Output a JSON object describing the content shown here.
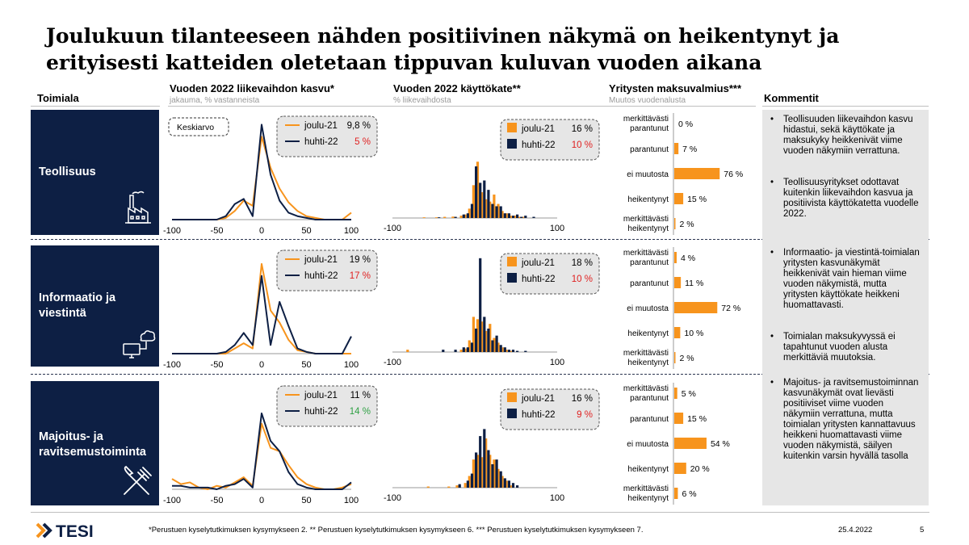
{
  "title_line1": "Joulukuun tilanteeseen nähden positiivinen näkymä on heikentynyt ja",
  "title_line2": "erityisesti katteiden oletetaan tippuvan kuluvan vuoden aikana",
  "headers": {
    "sector": "Toimiala",
    "revenue": "Vuoden 2022 liikevaihdon kasvu*",
    "revenue_sub": "jakauma, % vastanneista",
    "ebit": "Vuoden 2022 käyttökate**",
    "ebit_sub": "% liikevaihdosta",
    "liquidity": "Yritysten maksuvalmius***",
    "liquidity_sub": "Muutos vuodenalusta",
    "comments": "Kommentit"
  },
  "rows": [
    {
      "sector_line1": "Teollisuus",
      "sector_line2": "",
      "icon": "factory-icon"
    },
    {
      "sector_line1": "Informaatio ja",
      "sector_line2": "viestintä",
      "icon": "computer-cloud-icon"
    },
    {
      "sector_line1": "Majoitus- ja",
      "sector_line2": "ravitsemustoiminta",
      "icon": "fork-knife-icon"
    }
  ],
  "keskiarvo_label": "Keskiarvo",
  "comments": [
    "Teollisuuden liikevaihdon kasvu hidastui, sekä käyttökate ja maksukyky heikkenivät viime vuoden näkymiin verrattuna.",
    "Teollisuusyritykset odottavat kuitenkin liikevaihdon kasvua ja positiivista käyttökatetta vuodelle 2022.",
    "Informaatio- ja viestintä-toimialan yritysten kasvunäkymät heikkenivät vain hieman viime vuoden näkymistä, mutta yritysten käyttökate heikkeni huomattavasti.",
    "Toimialan maksukyvyssä ei tapahtunut vuoden alusta merkittäviä muutoksia.",
    "Majoitus- ja ravitsemustoiminnan kasvunäkymät ovat lievästi positiiviset viime vuoden näkymiin verrattuna, mutta toimialan yritysten kannattavuus heikkeni huomattavasti viime vuoden näkymistä, säilyen kuitenkin varsin hyvällä tasolla"
  ],
  "footnote": "*Perustuen kyselytutkimuksen kysymykseen 2. ** Perustuen kyselytutkimuksen kysymykseen 6. *** Perustuen kyselytutkimuksen kysymykseen 7.",
  "date": "25.4.2022",
  "page_number": "5",
  "logo_text": "TESI",
  "colors": {
    "orange": "#f7941d",
    "navy": "#0d1f44",
    "red": "#e02020",
    "green": "#2ea043",
    "box_bg": "#e6e6e6"
  },
  "chart_data": [
    {
      "type": "line",
      "row": 0,
      "xlim": [
        -100,
        100
      ],
      "xticks": [
        "-100",
        "-50",
        "0",
        "50",
        "100"
      ],
      "x": [
        -100,
        -90,
        -80,
        -70,
        -60,
        -50,
        -40,
        -30,
        -20,
        -10,
        0,
        10,
        20,
        30,
        40,
        50,
        60,
        70,
        80,
        90,
        100
      ],
      "series": [
        {
          "name": "joulu-21",
          "color": "#f7941d",
          "values": [
            0,
            0,
            0,
            0,
            0,
            0,
            1,
            5,
            11,
            8,
            48,
            30,
            18,
            10,
            5,
            2,
            1,
            0,
            0,
            0,
            4
          ],
          "mean_label": "9,8 %",
          "mean_color": "#000000"
        },
        {
          "name": "huhti-22",
          "color": "#0d1f44",
          "values": [
            0,
            0,
            0,
            0,
            0,
            0,
            2,
            9,
            12,
            2,
            55,
            26,
            11,
            4,
            2,
            1,
            0,
            0,
            0,
            0,
            0
          ],
          "mean_label": "5 %",
          "mean_color": "#e02020"
        }
      ]
    },
    {
      "type": "line",
      "row": 1,
      "xlim": [
        -100,
        100
      ],
      "xticks": [
        "-100",
        "-50",
        "0",
        "50",
        "100"
      ],
      "x": [
        -100,
        -90,
        -80,
        -70,
        -60,
        -50,
        -40,
        -30,
        -20,
        -10,
        0,
        10,
        20,
        30,
        40,
        50,
        60,
        70,
        80,
        90,
        100
      ],
      "series": [
        {
          "name": "joulu-21",
          "color": "#f7941d",
          "values": [
            0,
            0,
            0,
            0,
            0,
            0,
            0,
            3,
            6,
            3,
            52,
            25,
            18,
            8,
            2,
            1,
            0,
            0,
            0,
            0,
            0
          ],
          "mean_label": "19 %",
          "mean_color": "#000000"
        },
        {
          "name": "huhti-22",
          "color": "#0d1f44",
          "values": [
            0,
            0,
            0,
            0,
            0,
            0,
            1,
            5,
            12,
            5,
            45,
            5,
            30,
            16,
            3,
            1,
            0,
            0,
            0,
            0,
            10
          ],
          "mean_label": "17 %",
          "mean_color": "#e02020"
        }
      ]
    },
    {
      "type": "line",
      "row": 2,
      "xlim": [
        -100,
        100
      ],
      "xticks": [
        "-100",
        "-50",
        "0",
        "50",
        "100"
      ],
      "x": [
        -100,
        -90,
        -80,
        -70,
        -60,
        -50,
        -40,
        -30,
        -20,
        -10,
        0,
        10,
        20,
        30,
        40,
        50,
        60,
        70,
        80,
        90,
        100
      ],
      "series": [
        {
          "name": "joulu-21",
          "color": "#f7941d",
          "values": [
            6,
            3,
            4,
            1,
            0,
            2,
            1,
            4,
            7,
            2,
            38,
            24,
            22,
            14,
            7,
            3,
            1,
            0,
            0,
            1,
            3
          ],
          "mean_label": "11 %",
          "mean_color": "#000000"
        },
        {
          "name": "huhti-22",
          "color": "#0d1f44",
          "values": [
            2,
            2,
            1,
            1,
            1,
            0,
            2,
            3,
            6,
            1,
            44,
            28,
            22,
            10,
            3,
            1,
            0,
            0,
            0,
            0,
            4
          ],
          "mean_label": "14 %",
          "mean_color": "#2ea043"
        }
      ]
    },
    {
      "type": "bar",
      "row": 0,
      "xlim": [
        -100,
        100
      ],
      "xticks": [
        "-100",
        "100"
      ],
      "x": [
        -60,
        -45,
        -35,
        -25,
        -15,
        -10,
        -5,
        0,
        5,
        10,
        15,
        20,
        25,
        30,
        35,
        40,
        45,
        50,
        55,
        60,
        70
      ],
      "series": [
        {
          "name": "joulu-21",
          "color": "#f7941d",
          "values": [
            0.3,
            0.3,
            0.5,
            0.6,
            1,
            1.5,
            4,
            14,
            24,
            11,
            8,
            7,
            10,
            6,
            3,
            2,
            1,
            1,
            0.5,
            0.5,
            0
          ],
          "mean_label": "16 %",
          "mean_color": "#000000"
        },
        {
          "name": "huhti-22",
          "color": "#0d1f44",
          "values": [
            0,
            0.3,
            0,
            0.5,
            1.5,
            2,
            6,
            22,
            15,
            16,
            12,
            6,
            5,
            5,
            2,
            2,
            1,
            1.5,
            0.5,
            1,
            0.5
          ],
          "mean_label": "10 %",
          "mean_color": "#e02020"
        }
      ]
    },
    {
      "type": "bar",
      "row": 1,
      "xlim": [
        -100,
        100
      ],
      "xticks": [
        "-100",
        "100"
      ],
      "x": [
        -80,
        -40,
        -25,
        -15,
        -10,
        -5,
        0,
        5,
        10,
        15,
        20,
        25,
        30,
        35,
        40,
        45,
        50,
        60
      ],
      "series": [
        {
          "name": "joulu-21",
          "color": "#f7941d",
          "values": [
            1,
            0,
            0,
            1,
            1.5,
            5,
            15,
            14,
            13,
            9,
            12,
            6,
            4,
            2,
            1,
            0.5,
            0,
            0
          ],
          "mean_label": "18 %",
          "mean_color": "#000000"
        },
        {
          "name": "huhti-22",
          "color": "#0d1f44",
          "values": [
            0,
            1,
            1,
            2,
            2,
            4,
            10,
            40,
            15,
            10,
            5,
            7,
            3,
            2,
            1,
            1,
            0.5,
            0.5
          ],
          "mean_label": "10 %",
          "mean_color": "#e02020"
        }
      ]
    },
    {
      "type": "bar",
      "row": 2,
      "xlim": [
        -100,
        100
      ],
      "xticks": [
        "-100",
        "100"
      ],
      "x": [
        -55,
        -30,
        -20,
        -10,
        -5,
        0,
        5,
        10,
        15,
        20,
        25,
        30,
        35,
        40,
        45,
        50
      ],
      "series": [
        {
          "name": "joulu-21",
          "color": "#f7941d",
          "values": [
            0.5,
            0.5,
            1,
            2,
            5,
            12,
            14,
            13,
            21,
            14,
            12,
            8,
            5,
            3,
            1,
            0
          ],
          "mean_label": "16 %",
          "mean_color": "#000000"
        },
        {
          "name": "huhti-22",
          "color": "#0d1f44",
          "values": [
            0,
            0,
            1.5,
            3,
            6,
            15,
            22,
            25,
            16,
            10,
            12,
            7,
            4,
            3,
            2,
            1
          ],
          "mean_label": "9 %",
          "mean_color": "#e02020"
        }
      ]
    },
    {
      "type": "hbar",
      "row": 0,
      "categories": [
        [
          "merkittävästi",
          "parantunut"
        ],
        [
          "parantunut"
        ],
        [
          "ei muutosta"
        ],
        [
          "heikentynyt"
        ],
        [
          "merkittävästi",
          "heikentynyt"
        ]
      ],
      "values": [
        0,
        7,
        76,
        15,
        2
      ],
      "labels": [
        "0 %",
        "7 %",
        "76 %",
        "15 %",
        "2 %"
      ],
      "xlim": [
        0,
        100
      ]
    },
    {
      "type": "hbar",
      "row": 1,
      "categories": [
        [
          "merkittävästi",
          "parantunut"
        ],
        [
          "parantunut"
        ],
        [
          "ei muutosta"
        ],
        [
          "heikentynyt"
        ],
        [
          "merkittävästi",
          "heikentynyt"
        ]
      ],
      "values": [
        4,
        11,
        72,
        10,
        2
      ],
      "labels": [
        "4 %",
        "11 %",
        "72 %",
        "10 %",
        "2 %"
      ],
      "xlim": [
        0,
        100
      ]
    },
    {
      "type": "hbar",
      "row": 2,
      "categories": [
        [
          "merkittävästi",
          "parantunut"
        ],
        [
          "parantunut"
        ],
        [
          "ei muutosta"
        ],
        [
          "heikentynyt"
        ],
        [
          "merkittävästi",
          "heikentynyt"
        ]
      ],
      "values": [
        5,
        15,
        54,
        20,
        6
      ],
      "labels": [
        "5 %",
        "15 %",
        "54 %",
        "20 %",
        "6 %"
      ],
      "xlim": [
        0,
        100
      ]
    }
  ]
}
